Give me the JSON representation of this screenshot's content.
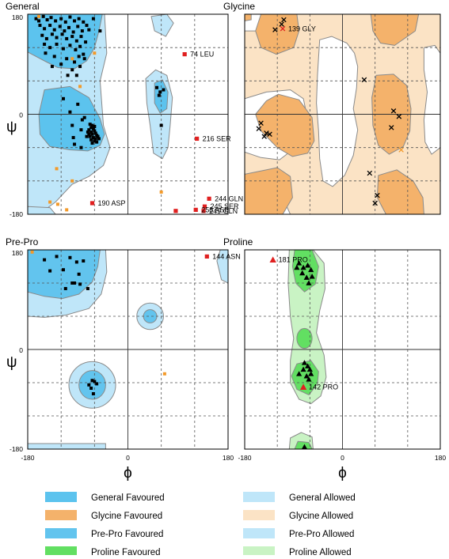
{
  "axis": {
    "phi_symbol": "ϕ",
    "psi_symbol": "ψ",
    "range": [
      -180,
      180
    ],
    "ticks": [
      -180,
      0,
      180
    ],
    "tick_labels": [
      "-180",
      "0",
      "180"
    ],
    "grid_dashed_every": 60
  },
  "legend": [
    {
      "label": "General Favoured",
      "color": "#5cc3ee"
    },
    {
      "label": "General Allowed",
      "color": "#bfe6f9"
    },
    {
      "label": "Glycine Favoured",
      "color": "#f4b26b"
    },
    {
      "label": "Glycine Allowed",
      "color": "#fbe3c5"
    },
    {
      "label": "Pre-Pro Favoured",
      "color": "#62c4ee"
    },
    {
      "label": "Pre-Pro Allowed",
      "color": "#bfe6f9"
    },
    {
      "label": "Proline Favoured",
      "color": "#62df62"
    },
    {
      "label": "Proline Allowed",
      "color": "#c9f3c4"
    }
  ],
  "chart_data": [
    {
      "type": "scatter",
      "title": "General",
      "xlabel": "ϕ",
      "ylabel": "ψ",
      "xlim": [
        -180,
        180
      ],
      "ylim": [
        -180,
        180
      ],
      "colors": {
        "favoured": "#5cc3ee",
        "allowed": "#bfe6f9",
        "point": "#000000",
        "marginal": "#f39a2a",
        "outlier": "#e02020"
      },
      "points": [
        [
          -165,
          172
        ],
        [
          -160,
          168
        ],
        [
          -152,
          176
        ],
        [
          -145,
          170
        ],
        [
          -138,
          174
        ],
        [
          -130,
          168
        ],
        [
          -120,
          172
        ],
        [
          -112,
          166
        ],
        [
          -104,
          175
        ],
        [
          -96,
          168
        ],
        [
          -88,
          172
        ],
        [
          -80,
          166
        ],
        [
          -158,
          160
        ],
        [
          -150,
          154
        ],
        [
          -140,
          160
        ],
        [
          -132,
          152
        ],
        [
          -122,
          158
        ],
        [
          -114,
          150
        ],
        [
          -106,
          156
        ],
        [
          -98,
          148
        ],
        [
          -90,
          158
        ],
        [
          -82,
          150
        ],
        [
          -74,
          160
        ],
        [
          -70,
          152
        ],
        [
          -154,
          142
        ],
        [
          -146,
          136
        ],
        [
          -136,
          144
        ],
        [
          -128,
          138
        ],
        [
          -118,
          144
        ],
        [
          -110,
          136
        ],
        [
          -100,
          140
        ],
        [
          -92,
          132
        ],
        [
          -84,
          140
        ],
        [
          -76,
          130
        ],
        [
          -150,
          126
        ],
        [
          -140,
          120
        ],
        [
          -128,
          126
        ],
        [
          -116,
          118
        ],
        [
          -104,
          124
        ],
        [
          -94,
          116
        ],
        [
          -86,
          122
        ],
        [
          -80,
          108
        ],
        [
          -148,
          110
        ],
        [
          -132,
          104
        ],
        [
          -110,
          100
        ],
        [
          -96,
          94
        ],
        [
          -88,
          104
        ],
        [
          -120,
          90
        ],
        [
          -100,
          80
        ],
        [
          -92,
          70
        ],
        [
          -108,
          70
        ],
        [
          -86,
          86
        ],
        [
          -78,
          100
        ],
        [
          -62,
          172
        ],
        [
          -50,
          150
        ],
        [
          -136,
          86
        ],
        [
          -64,
          -20
        ],
        [
          -66,
          -24
        ],
        [
          -62,
          -26
        ],
        [
          -70,
          -28
        ],
        [
          -60,
          -30
        ],
        [
          -66,
          -32
        ],
        [
          -58,
          -34
        ],
        [
          -64,
          -36
        ],
        [
          -56,
          -38
        ],
        [
          -68,
          -40
        ],
        [
          -62,
          -42
        ],
        [
          -58,
          -44
        ],
        [
          -66,
          -46
        ],
        [
          -60,
          -48
        ],
        [
          -54,
          -40
        ],
        [
          -52,
          -44
        ],
        [
          -70,
          -36
        ],
        [
          -72,
          -32
        ],
        [
          -64,
          -52
        ],
        [
          -56,
          -50
        ],
        [
          -68,
          -18
        ],
        [
          -60,
          -22
        ],
        [
          -74,
          -40
        ],
        [
          -98,
          -42
        ],
        [
          -82,
          -10
        ],
        [
          -78,
          -6
        ],
        [
          -104,
          4
        ],
        [
          -90,
          18
        ],
        [
          -100,
          -20
        ],
        [
          -84,
          -28
        ],
        [
          -96,
          -54
        ],
        [
          -116,
          28
        ],
        [
          -84,
          -60
        ],
        [
          52,
          48
        ],
        [
          58,
          40
        ],
        [
          64,
          44
        ],
        [
          56,
          34
        ],
        [
          60,
          -20
        ]
      ],
      "marginal": [
        [
          -128,
          -98
        ],
        [
          -100,
          -120
        ],
        [
          -140,
          -158
        ],
        [
          -126,
          -162
        ],
        [
          -110,
          -172
        ],
        [
          -86,
          50
        ],
        [
          -60,
          110
        ],
        [
          -160,
          176
        ],
        [
          60,
          -140
        ],
        [
          -100,
          100
        ]
      ],
      "outliers": [
        {
          "phi": 102,
          "psi": 108,
          "label": "74 LEU"
        },
        {
          "phi": 124,
          "psi": -44,
          "label": "216 SER"
        },
        {
          "phi": -64,
          "psi": -160,
          "label": "190 ASP"
        },
        {
          "phi": 146,
          "psi": -152,
          "label": "244 GLN"
        },
        {
          "phi": 138,
          "psi": -166,
          "label": "245 SER"
        },
        {
          "phi": 122,
          "psi": -172,
          "label": "258 ASP"
        },
        {
          "phi": 136,
          "psi": -174,
          "label": "249 GLN"
        },
        {
          "phi": 86,
          "psi": -174,
          "label": ""
        }
      ]
    },
    {
      "type": "scatter",
      "title": "Glycine",
      "xlabel": "ϕ",
      "ylabel": "ψ",
      "xlim": [
        -180,
        180
      ],
      "ylim": [
        -180,
        180
      ],
      "colors": {
        "favoured": "#f4b26b",
        "allowed": "#fbe3c5",
        "point": "#000000",
        "marginal": "#f39a2a",
        "outlier": "#e02020"
      },
      "points": [
        [
          -108,
          170
        ],
        [
          -112,
          162
        ],
        [
          -124,
          152
        ],
        [
          -154,
          -26
        ],
        [
          -150,
          -16
        ],
        [
          -140,
          -34
        ],
        [
          -134,
          -36
        ],
        [
          -144,
          -40
        ],
        [
          40,
          62
        ],
        [
          94,
          6
        ],
        [
          104,
          -4
        ],
        [
          90,
          -24
        ],
        [
          60,
          -160
        ],
        [
          64,
          -146
        ],
        [
          50,
          -106
        ]
      ],
      "marginal": [
        [
          108,
          -64
        ]
      ],
      "outliers": [
        {
          "phi": -110,
          "psi": 154,
          "label": "139 GLY"
        }
      ]
    },
    {
      "type": "scatter",
      "title": "Pre-Pro",
      "xlabel": "ϕ",
      "ylabel": "ψ",
      "xlim": [
        -180,
        180
      ],
      "ylim": [
        -180,
        180
      ],
      "colors": {
        "favoured": "#62c4ee",
        "allowed": "#bfe6f9",
        "point": "#000000",
        "marginal": "#f39a2a",
        "outlier": "#e02020"
      },
      "points": [
        [
          -150,
          162
        ],
        [
          -128,
          168
        ],
        [
          -104,
          166
        ],
        [
          -92,
          158
        ],
        [
          -80,
          160
        ],
        [
          -140,
          142
        ],
        [
          -116,
          144
        ],
        [
          -88,
          136
        ],
        [
          -100,
          120
        ],
        [
          -86,
          118
        ],
        [
          -112,
          110
        ],
        [
          -96,
          120
        ],
        [
          -72,
          110
        ],
        [
          -70,
          -64
        ],
        [
          -64,
          -56
        ],
        [
          -60,
          -58
        ],
        [
          -56,
          -62
        ],
        [
          -66,
          -70
        ],
        [
          -62,
          -80
        ]
      ],
      "marginal": [
        [
          -172,
          176
        ],
        [
          66,
          -44
        ]
      ],
      "outliers": [
        {
          "phi": 142,
          "psi": 168,
          "label": "144 ASN"
        }
      ]
    },
    {
      "type": "scatter",
      "title": "Proline",
      "xlabel": "ϕ",
      "ylabel": "ψ",
      "xlim": [
        -180,
        180
      ],
      "ylim": [
        -180,
        180
      ],
      "colors": {
        "favoured": "#62df62",
        "allowed": "#c9f3c4",
        "point": "#000000",
        "marginal": "#f39a2a",
        "outlier": "#e02020"
      },
      "points": [
        [
          -80,
          156
        ],
        [
          -72,
          148
        ],
        [
          -64,
          152
        ],
        [
          -58,
          144
        ],
        [
          -84,
          148
        ],
        [
          -74,
          138
        ],
        [
          -66,
          130
        ],
        [
          -56,
          132
        ],
        [
          -62,
          120
        ],
        [
          -70,
          -24
        ],
        [
          -64,
          -30
        ],
        [
          -60,
          -36
        ],
        [
          -72,
          -36
        ],
        [
          -58,
          -44
        ],
        [
          -66,
          -48
        ],
        [
          -80,
          -44
        ],
        [
          -62,
          -54
        ],
        [
          -70,
          -176
        ]
      ],
      "marginal": [],
      "outliers": [
        {
          "phi": -128,
          "psi": 162,
          "label": "181 PRO"
        },
        {
          "phi": -72,
          "psi": -68,
          "label": "142 PRO"
        }
      ]
    }
  ]
}
